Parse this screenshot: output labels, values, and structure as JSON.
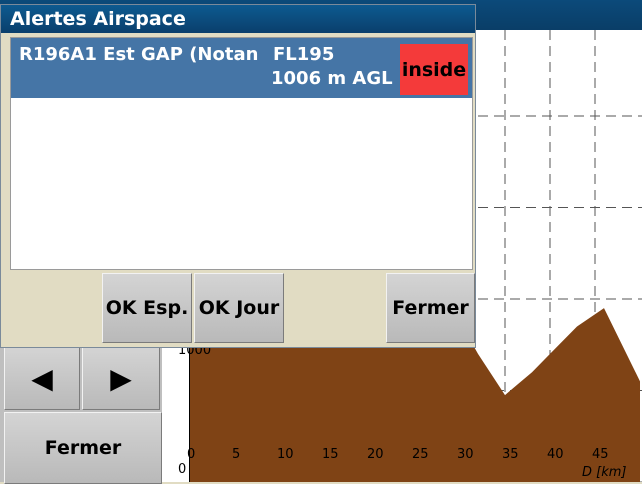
{
  "dialog": {
    "title": "Alertes Airspace",
    "alert": {
      "name": "R196A1 Est GAP (Notan",
      "top": "FL195",
      "bottom": "1006 m AGL",
      "status": "inside",
      "status_color": "#f43a3a",
      "row_color": "#4575a6"
    },
    "buttons": {
      "ok_space": "OK Esp.",
      "ok_day": "OK Jour",
      "close": "Fermer"
    }
  },
  "background_window": {
    "nav": {
      "prev_icon": "left-triangle-icon",
      "prev_glyph": "◀",
      "next_icon": "right-triangle-icon",
      "next_glyph": "▶"
    },
    "close_label": "Fermer"
  },
  "chart_data": {
    "type": "area",
    "xlabel": "D [km]",
    "x_ticks": [
      0,
      5,
      10,
      15,
      20,
      25,
      30,
      35,
      40,
      45
    ],
    "xlim": [
      0,
      50
    ],
    "y_ticks_visible": [
      "0",
      "1000"
    ],
    "terrain_color": "#7f4315",
    "terrain": {
      "x": [
        0,
        25,
        30,
        32,
        35,
        38,
        40,
        43,
        46,
        48,
        50
      ],
      "y": [
        1600,
        1700,
        1750,
        1400,
        950,
        1200,
        1400,
        1700,
        1900,
        1500,
        1100
      ]
    },
    "ylim": [
      0,
      4600
    ],
    "grid": true
  }
}
